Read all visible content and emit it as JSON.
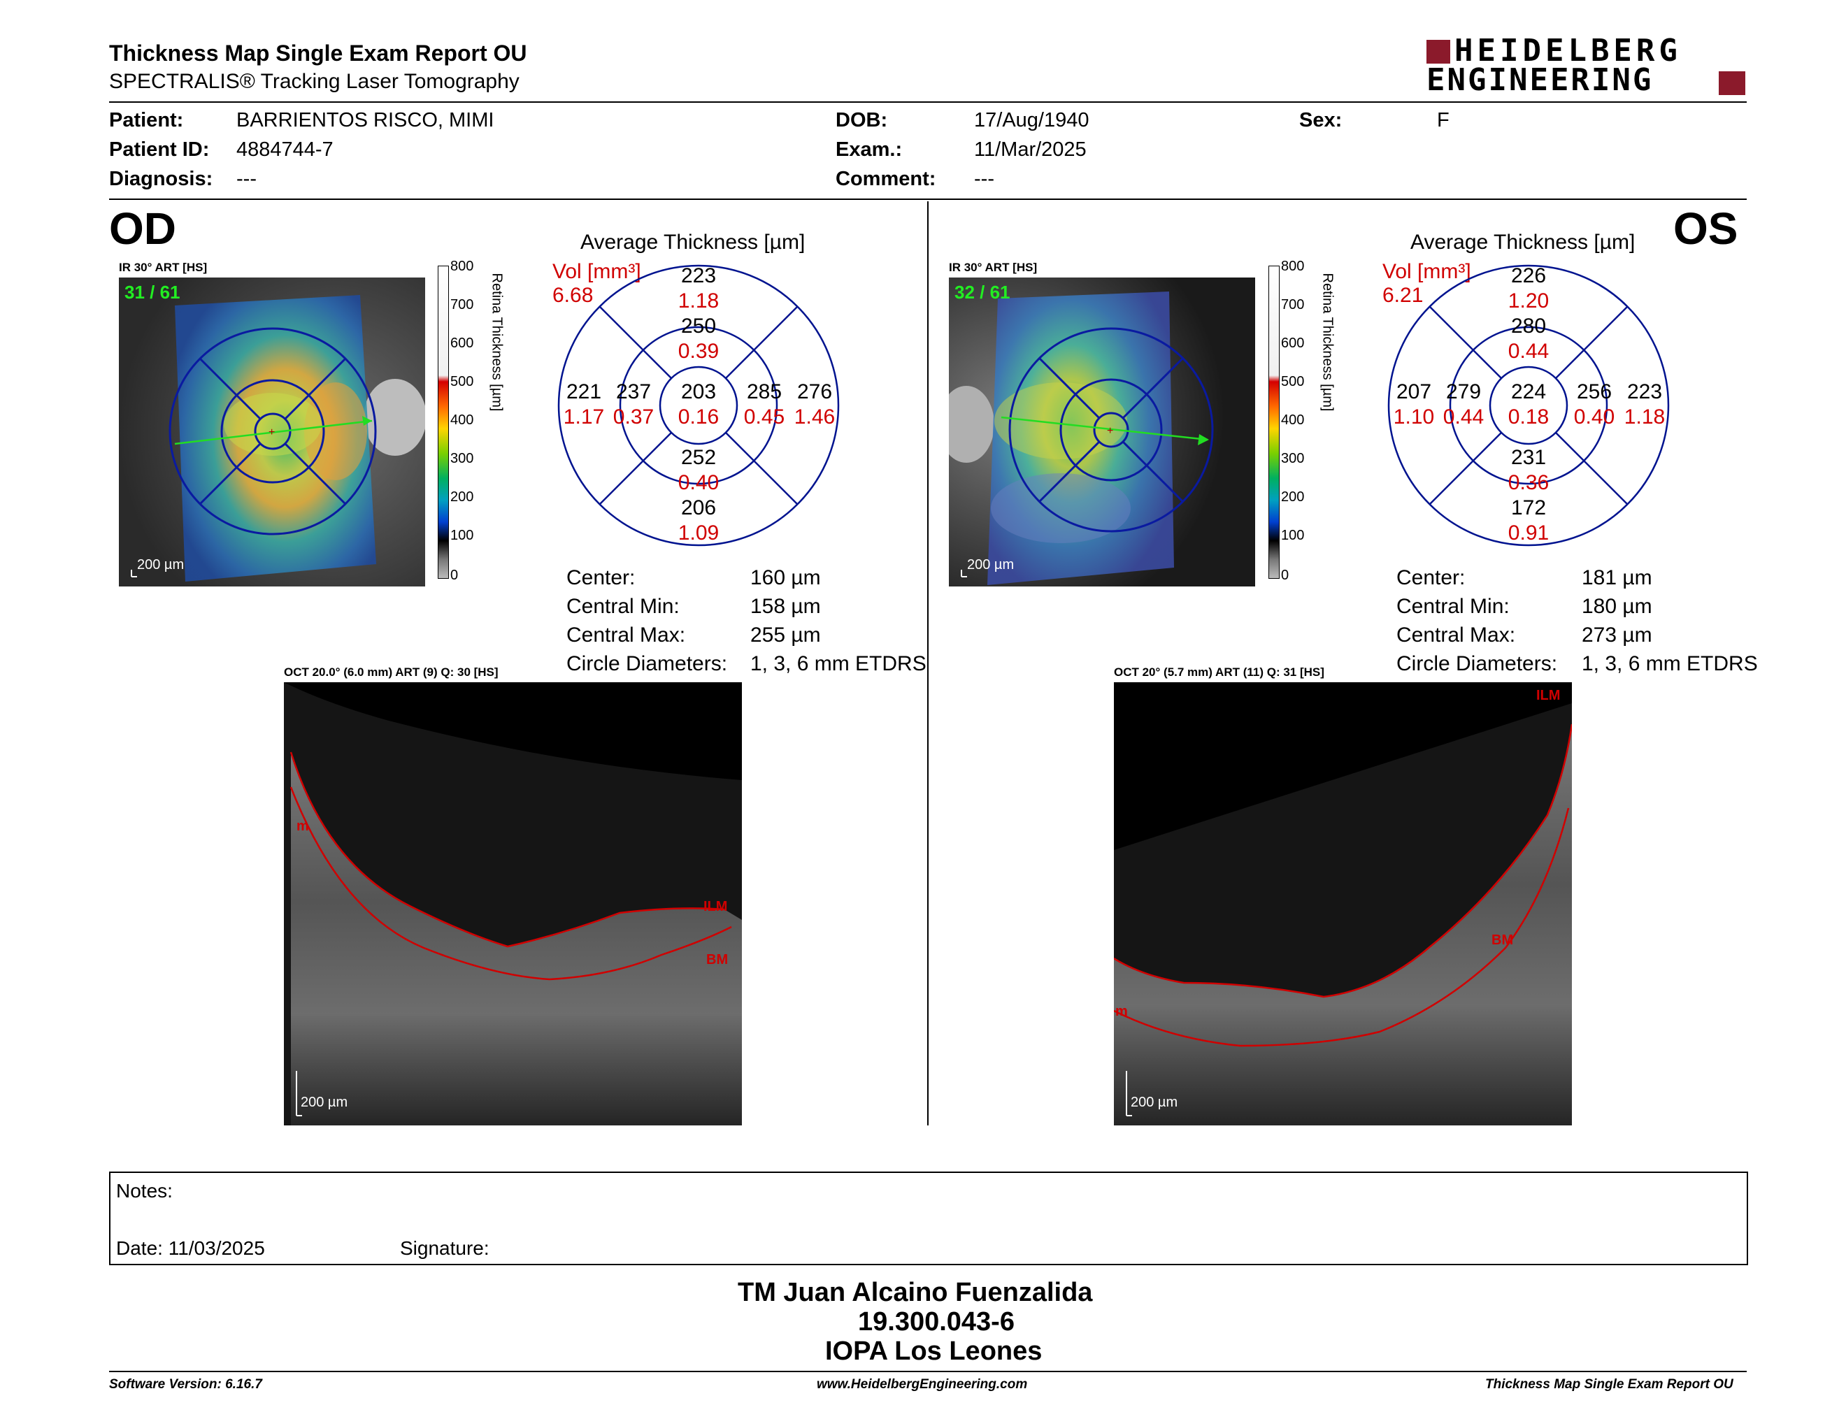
{
  "header": {
    "title": "Thickness Map Single Exam Report OU",
    "subtitle": "SPECTRALIS® Tracking Laser Tomography",
    "logo_line1": "HEIDELBERG",
    "logo_line2": "ENGINEERING",
    "brand_color": "#8b1a2b"
  },
  "patient": {
    "patient_label": "Patient:",
    "patient_value": "BARRIENTOS RISCO, MIMI",
    "id_label": "Patient ID:",
    "id_value": "4884744-7",
    "diag_label": "Diagnosis:",
    "diag_value": "---",
    "dob_label": "DOB:",
    "dob_value": "17/Aug/1940",
    "exam_label": "Exam.:",
    "exam_value": "11/Mar/2025",
    "comment_label": "Comment:",
    "comment_value": "---",
    "sex_label": "Sex:",
    "sex_value": "F"
  },
  "od": {
    "eye": "OD",
    "ir_label": "IR 30° ART [HS]",
    "frame": "31 / 61",
    "ir_scale": "200 µm",
    "colorbar_ticks": [
      "800",
      "700",
      "600",
      "500",
      "400",
      "300",
      "200",
      "100",
      "0"
    ],
    "colorbar_title": "Retina  Thickness [µm]",
    "avg_title": "Average Thickness [µm]",
    "vol_label": "Vol [mm³]",
    "vol_value": "6.68",
    "sectors": {
      "outer_sup": {
        "t": "223",
        "v": "1.18"
      },
      "inner_sup": {
        "t": "250",
        "v": "0.39"
      },
      "outer_left": {
        "t": "221",
        "v": "1.17"
      },
      "inner_left": {
        "t": "237",
        "v": "0.37"
      },
      "center": {
        "t": "203",
        "v": "0.16"
      },
      "inner_right": {
        "t": "285",
        "v": "0.45"
      },
      "outer_right": {
        "t": "276",
        "v": "1.46"
      },
      "inner_inf": {
        "t": "252",
        "v": "0.40"
      },
      "outer_inf": {
        "t": "206",
        "v": "1.09"
      }
    },
    "stats": [
      {
        "label": "Center:",
        "value": "160 µm"
      },
      {
        "label": "Central Min:",
        "value": "158 µm"
      },
      {
        "label": "Central Max:",
        "value": "255 µm"
      },
      {
        "label": "Circle Diameters:",
        "value": "1, 3, 6 mm ETDRS"
      }
    ],
    "oct_label": "OCT 20.0° (6.0 mm) ART (9) Q: 30 [HS]",
    "oct_scale": "200 µm",
    "ilm": "ILM",
    "bm": "BM",
    "m": "m"
  },
  "os": {
    "eye": "OS",
    "ir_label": "IR 30° ART [HS]",
    "frame": "32 / 61",
    "ir_scale": "200 µm",
    "colorbar_ticks": [
      "800",
      "700",
      "600",
      "500",
      "400",
      "300",
      "200",
      "100",
      "0"
    ],
    "colorbar_title": "Retina  Thickness [µm]",
    "avg_title": "Average Thickness [µm]",
    "vol_label": "Vol [mm³]",
    "vol_value": "6.21",
    "sectors": {
      "outer_sup": {
        "t": "226",
        "v": "1.20"
      },
      "inner_sup": {
        "t": "280",
        "v": "0.44"
      },
      "outer_left": {
        "t": "207",
        "v": "1.10"
      },
      "inner_left": {
        "t": "279",
        "v": "0.44"
      },
      "center": {
        "t": "224",
        "v": "0.18"
      },
      "inner_right": {
        "t": "256",
        "v": "0.40"
      },
      "outer_right": {
        "t": "223",
        "v": "1.18"
      },
      "inner_inf": {
        "t": "231",
        "v": "0.36"
      },
      "outer_inf": {
        "t": "172",
        "v": "0.91"
      }
    },
    "stats": [
      {
        "label": "Center:",
        "value": "181 µm"
      },
      {
        "label": "Central Min:",
        "value": "180 µm"
      },
      {
        "label": "Central Max:",
        "value": "273 µm"
      },
      {
        "label": "Circle Diameters:",
        "value": "1, 3, 6 mm ETDRS"
      }
    ],
    "oct_label": "OCT 20° (5.7 mm) ART (11) Q: 31 [HS]",
    "oct_scale": "200 µm",
    "ilm": "ILM",
    "bm": "BM",
    "m": "m"
  },
  "notes": {
    "notes_label": "Notes:",
    "date_label": "Date: 11/03/2025",
    "signature_label": "Signature:"
  },
  "signer": {
    "name": "TM Juan Alcaino Fuenzalida",
    "id": "19.300.043-6",
    "org": "IOPA Los Leones"
  },
  "footer": {
    "software": "Software Version: 6.16.7",
    "url": "www.HeidelbergEngineering.com",
    "report": "Thickness Map Single Exam Report OU"
  }
}
